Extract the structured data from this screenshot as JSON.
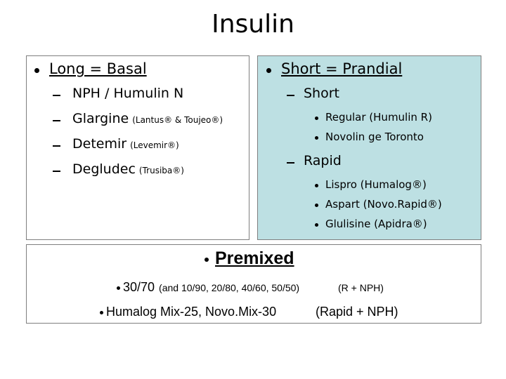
{
  "title": "Insulin",
  "long": {
    "heading": "Long = Basal",
    "items": [
      {
        "name": "NPH / Humulin N",
        "note": null
      },
      {
        "name": "Glargine",
        "note": "(Lantus® & Toujeo®)"
      },
      {
        "name": "Detemir",
        "note": "(Levemir®)"
      },
      {
        "name": "Degludec",
        "note": "(Trusiba®)"
      }
    ]
  },
  "short": {
    "heading": "Short = Prandial",
    "groups": [
      {
        "name": "Short",
        "items": [
          "Regular (Humulin R)",
          "Novolin ge Toronto"
        ]
      },
      {
        "name": "Rapid",
        "items": [
          "Lispro (Humalog®)",
          "Aspart (Novo.Rapid®)",
          "Glulisine (Apidra®)"
        ]
      }
    ]
  },
  "premixed": {
    "heading": "Premixed",
    "rows": [
      {
        "main": "30/70",
        "detail": "(and 10/90, 20/80, 40/60, 50/50)",
        "note": "(R + NPH)"
      },
      {
        "main": "Humalog Mix-25, Novo.Mix-30",
        "detail": null,
        "note": "(Rapid + NPH)"
      }
    ]
  }
}
